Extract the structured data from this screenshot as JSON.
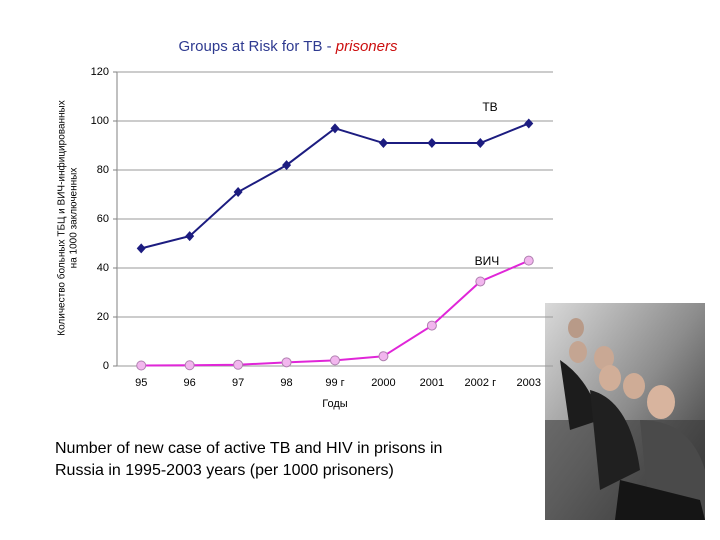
{
  "chart_data": {
    "type": "line",
    "title": "Groups at Risk for TB - ",
    "title_highlight": "prisoners",
    "ylabel": [
      "Количество больных ТБЦ и ВИЧ-инфицированных",
      "на 1000 заключенных"
    ],
    "xlabel": "Годы",
    "categories": [
      "95",
      "96",
      "97",
      "98",
      "99 г",
      "2000",
      "2001",
      "2002 г",
      "2003"
    ],
    "series": [
      {
        "name": "ТВ",
        "color": "#1c1c80",
        "marker": "diamond",
        "values": [
          48,
          53,
          71,
          82,
          97,
          91,
          91,
          91,
          99
        ]
      },
      {
        "name": "ВИЧ",
        "color": "#e026d8",
        "marker": "circle",
        "values": [
          0.2,
          0.3,
          0.5,
          1.5,
          2.3,
          4,
          16.5,
          34.5,
          43
        ]
      }
    ],
    "ylim": [
      0,
      120
    ],
    "yticks": [
      0,
      20,
      40,
      60,
      80,
      100,
      120
    ],
    "grid": true,
    "caption": [
      "Number of new case of active TB and HIV in prisons in",
      "Russia in 1995-2003 years (per 1000 prisoners)"
    ]
  }
}
